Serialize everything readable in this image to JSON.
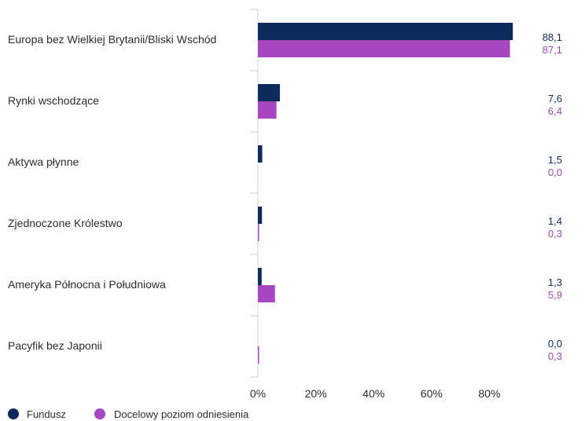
{
  "chart_data": {
    "type": "bar",
    "orientation": "horizontal",
    "categories": [
      "Europa bez Wielkiej Brytanii/Bliski Wschód",
      "Rynki wschodzące",
      "Aktywa płynne",
      "Zjednoczone Królestwo",
      "Ameryka Północna i Południowa",
      "Pacyfik bez Japonii"
    ],
    "series": [
      {
        "name": "Fundusz",
        "color": "#0d2a5c",
        "values": [
          88.1,
          7.6,
          1.5,
          1.4,
          1.3,
          0.0
        ],
        "value_labels": [
          "88,1",
          "7,6",
          "1,5",
          "1,4",
          "1,3",
          "0,0"
        ]
      },
      {
        "name": "Docelowy poziom odniesienia",
        "color": "#a845c0",
        "values": [
          87.1,
          6.4,
          0.0,
          0.3,
          5.9,
          0.3
        ],
        "value_labels": [
          "87,1",
          "6,4",
          "0,0",
          "0,3",
          "5,9",
          "0,3"
        ]
      }
    ],
    "xlim": [
      0,
      100
    ],
    "x_ticks": [
      0,
      20,
      40,
      60,
      80
    ],
    "x_tick_labels": [
      "0%",
      "20%",
      "40%",
      "60%",
      "80%"
    ],
    "grid": false,
    "legend_position": "bottom-left"
  }
}
